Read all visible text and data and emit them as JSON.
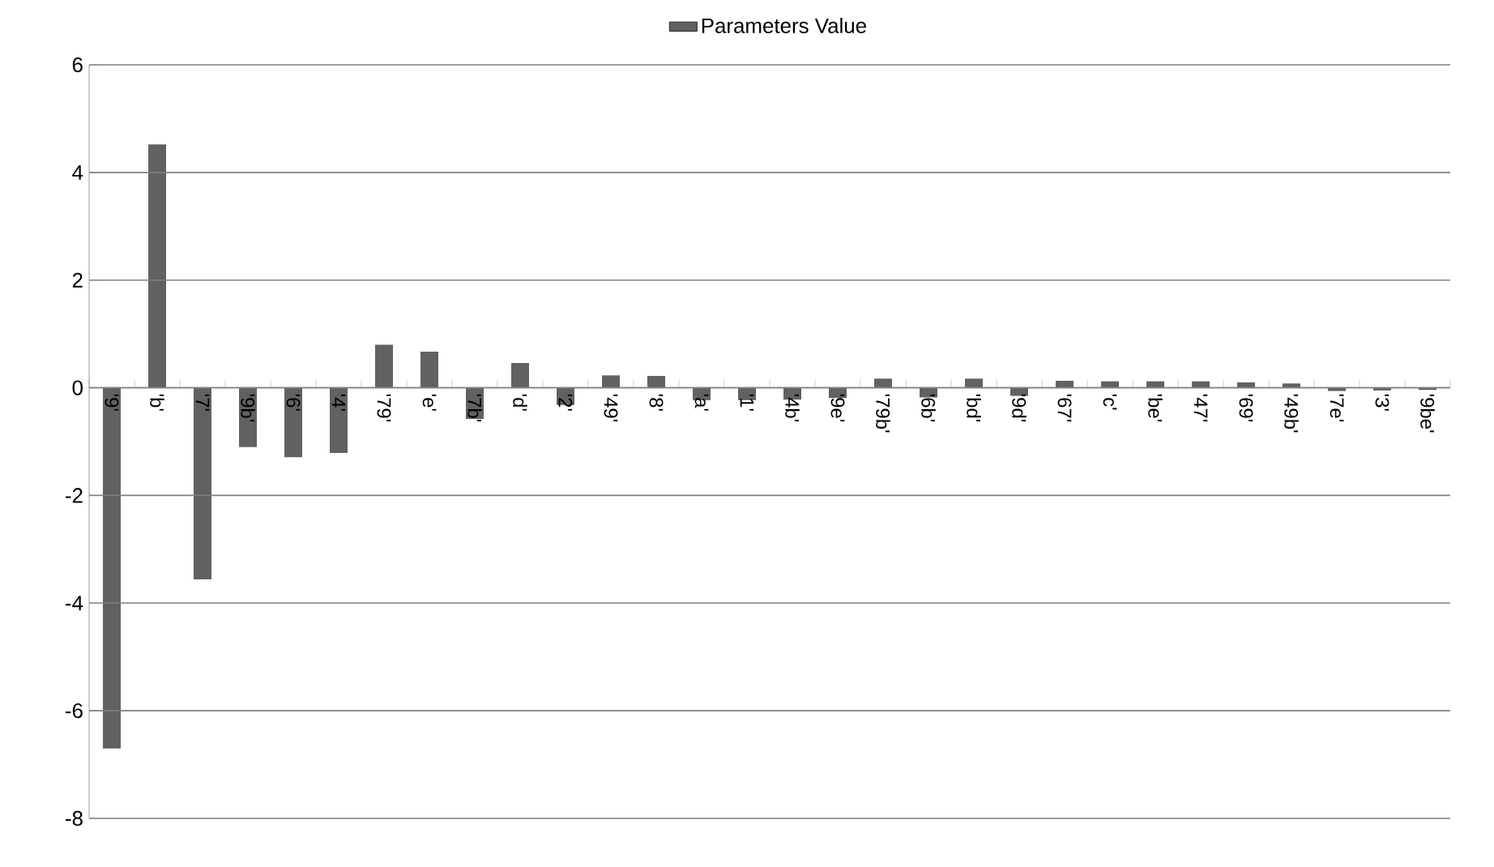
{
  "chart_data": {
    "type": "bar",
    "categories": [
      "'9'",
      "'b'",
      "'7'",
      "'9b'",
      "'6'",
      "'4'",
      "'79'",
      "'e'",
      "'7b'",
      "'d'",
      "'2'",
      "'49'",
      "'8'",
      "'a'",
      "'1'",
      "'4b'",
      "'9e'",
      "'79b'",
      "'6b'",
      "'bd'",
      "'9d'",
      "'67'",
      "'c'",
      "'be'",
      "'47'",
      "'69'",
      "'49b'",
      "'7e'",
      "'3'",
      "'9be'"
    ],
    "series": [
      {
        "name": "Parameters Value",
        "color": "#616161",
        "values": [
          -6.7,
          4.52,
          -3.56,
          -1.1,
          -1.29,
          -1.21,
          0.8,
          0.67,
          -0.58,
          0.46,
          -0.32,
          0.23,
          0.22,
          -0.23,
          -0.23,
          -0.22,
          -0.19,
          0.17,
          -0.18,
          0.17,
          -0.15,
          0.13,
          0.12,
          0.12,
          0.12,
          0.1,
          0.08,
          -0.06,
          -0.05,
          -0.04
        ]
      }
    ],
    "ylim": [
      -8,
      6
    ],
    "yticks": [
      -8,
      -6,
      -4,
      -2,
      0,
      2,
      4,
      6
    ],
    "grid": "y",
    "legend": "top"
  }
}
